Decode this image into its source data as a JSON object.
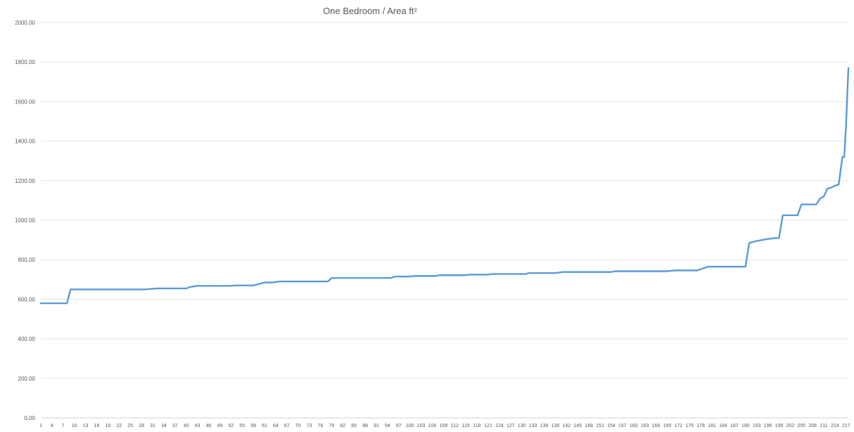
{
  "chart_data": {
    "type": "line",
    "title": "One Bedroom / Area ft²",
    "xlabel": "",
    "ylabel": "",
    "ylim": [
      0,
      2000
    ],
    "xlim": [
      1,
      217
    ],
    "grid": true,
    "legend": "none",
    "y_ticks": [
      "0.00",
      "200.00",
      "400.00",
      "600.00",
      "800.00",
      "1000.00",
      "1200.00",
      "1400.00",
      "1600.00",
      "1800.00",
      "2000.00"
    ],
    "x_tick_labels": [
      1,
      4,
      7,
      10,
      13,
      16,
      19,
      22,
      25,
      28,
      31,
      34,
      37,
      40,
      43,
      46,
      49,
      52,
      55,
      58,
      61,
      64,
      67,
      70,
      73,
      76,
      79,
      82,
      85,
      88,
      91,
      94,
      97,
      100,
      103,
      106,
      109,
      112,
      115,
      118,
      121,
      124,
      127,
      130,
      133,
      136,
      139,
      142,
      145,
      148,
      151,
      154,
      157,
      160,
      163,
      166,
      169,
      172,
      175,
      178,
      181,
      184,
      187,
      190,
      193,
      196,
      199,
      202,
      205,
      208,
      211,
      214,
      217
    ],
    "series_color": "#5b9bd5",
    "series": [
      {
        "points": [
          [
            1,
            580
          ],
          [
            8,
            580
          ],
          [
            9,
            650
          ],
          [
            29,
            650
          ],
          [
            32,
            655
          ],
          [
            40,
            655
          ],
          [
            41,
            662
          ],
          [
            43,
            668
          ],
          [
            52,
            668
          ],
          [
            53,
            670
          ],
          [
            58,
            670
          ],
          [
            61,
            685
          ],
          [
            63,
            685
          ],
          [
            65,
            690
          ],
          [
            78,
            690
          ],
          [
            79,
            708
          ],
          [
            95,
            708
          ],
          [
            96,
            715
          ],
          [
            100,
            715
          ],
          [
            101,
            718
          ],
          [
            107,
            718
          ],
          [
            108,
            722
          ],
          [
            115,
            722
          ],
          [
            116,
            725
          ],
          [
            121,
            725
          ],
          [
            122,
            728
          ],
          [
            131,
            728
          ],
          [
            132,
            733
          ],
          [
            139,
            733
          ],
          [
            141,
            738
          ],
          [
            154,
            738
          ],
          [
            155,
            742
          ],
          [
            169,
            742
          ],
          [
            171,
            746
          ],
          [
            177,
            746
          ],
          [
            180,
            765
          ],
          [
            189,
            765
          ],
          [
            190,
            765
          ],
          [
            191,
            885
          ],
          [
            193,
            895
          ],
          [
            196,
            905
          ],
          [
            198,
            910
          ],
          [
            199,
            910
          ],
          [
            200,
            1025
          ],
          [
            204,
            1025
          ],
          [
            205,
            1080
          ],
          [
            209,
            1080
          ],
          [
            210,
            1110
          ],
          [
            211,
            1120
          ],
          [
            212,
            1160
          ],
          [
            213,
            1165
          ],
          [
            214,
            1175
          ],
          [
            215,
            1180
          ],
          [
            216,
            1320
          ],
          [
            216.5,
            1320
          ],
          [
            217,
            1490
          ],
          [
            217.6,
            1770
          ]
        ]
      }
    ]
  }
}
